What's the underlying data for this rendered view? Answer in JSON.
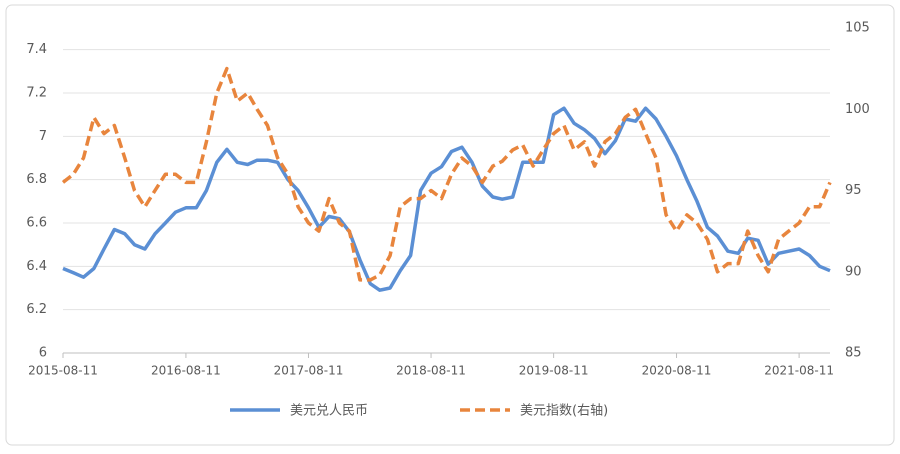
{
  "chart_data": {
    "type": "line",
    "x": [
      "2015-08-11",
      "2015-09-11",
      "2015-10-11",
      "2015-11-11",
      "2015-12-11",
      "2016-01-11",
      "2016-02-11",
      "2016-03-11",
      "2016-04-11",
      "2016-05-11",
      "2016-06-11",
      "2016-07-11",
      "2016-08-11",
      "2016-09-11",
      "2016-10-11",
      "2016-11-11",
      "2016-12-11",
      "2017-01-11",
      "2017-02-11",
      "2017-03-11",
      "2017-04-11",
      "2017-05-11",
      "2017-06-11",
      "2017-07-11",
      "2017-08-11",
      "2017-09-11",
      "2017-10-11",
      "2017-11-11",
      "2017-12-11",
      "2018-01-11",
      "2018-02-11",
      "2018-03-11",
      "2018-04-11",
      "2018-05-11",
      "2018-06-11",
      "2018-07-11",
      "2018-08-11",
      "2018-09-11",
      "2018-10-11",
      "2018-11-11",
      "2018-12-11",
      "2019-01-11",
      "2019-02-11",
      "2019-03-11",
      "2019-04-11",
      "2019-05-11",
      "2019-06-11",
      "2019-07-11",
      "2019-08-11",
      "2019-09-11",
      "2019-10-11",
      "2019-11-11",
      "2019-12-11",
      "2020-01-11",
      "2020-02-11",
      "2020-03-11",
      "2020-04-11",
      "2020-05-11",
      "2020-06-11",
      "2020-07-11",
      "2020-08-11",
      "2020-09-11",
      "2020-10-11",
      "2020-11-11",
      "2020-12-11",
      "2021-01-11",
      "2021-02-11",
      "2021-03-11",
      "2021-04-11",
      "2021-05-11",
      "2021-06-11",
      "2021-07-11",
      "2021-08-11",
      "2021-09-11",
      "2021-10-11",
      "2021-11-11"
    ],
    "series": [
      {
        "name": "美元兑人民币",
        "color": "#5b8fd4",
        "dashed": false,
        "values": [
          6.39,
          6.37,
          6.35,
          6.39,
          6.48,
          6.57,
          6.55,
          6.5,
          6.48,
          6.55,
          6.6,
          6.65,
          6.67,
          6.67,
          6.75,
          6.88,
          6.94,
          6.88,
          6.87,
          6.89,
          6.89,
          6.88,
          6.8,
          6.75,
          6.67,
          6.58,
          6.63,
          6.62,
          6.56,
          6.43,
          6.32,
          6.29,
          6.3,
          6.38,
          6.45,
          6.75,
          6.83,
          6.86,
          6.93,
          6.95,
          6.88,
          6.77,
          6.72,
          6.71,
          6.72,
          6.88,
          6.88,
          6.88,
          7.1,
          7.13,
          7.06,
          7.03,
          6.99,
          6.92,
          6.98,
          7.08,
          7.07,
          7.13,
          7.08,
          7.0,
          6.91,
          6.8,
          6.7,
          6.58,
          6.54,
          6.47,
          6.46,
          6.53,
          6.52,
          6.41,
          6.46,
          6.47,
          6.48,
          6.45,
          6.4,
          6.38
        ]
      },
      {
        "name": "美元指数(右轴)",
        "color": "#e8853d",
        "dashed": true,
        "axis": "y2",
        "values": [
          95.5,
          96,
          97,
          99.5,
          98.5,
          99,
          97,
          95,
          94,
          95,
          96,
          96,
          95.5,
          95.5,
          98,
          101,
          102.5,
          100.5,
          101,
          100,
          99,
          97,
          96,
          94,
          93,
          92.5,
          94.5,
          93,
          92.5,
          89.5,
          89.5,
          89.8,
          91,
          94,
          94.5,
          94.5,
          95,
          94.5,
          96,
          97,
          96.5,
          95.5,
          96.5,
          96.8,
          97.5,
          97.8,
          96.5,
          97.5,
          98.5,
          99,
          97.5,
          98,
          96.5,
          98,
          98.5,
          99.5,
          100,
          98.5,
          97,
          93.5,
          92.5,
          93.5,
          93,
          92,
          90,
          90.5,
          90.5,
          92.5,
          91,
          90,
          92,
          92.5,
          93,
          94,
          94,
          95.5
        ]
      }
    ],
    "xlim": [
      "2015-08-11",
      "2021-11-11"
    ],
    "xticks": [
      "2015-08-11",
      "2016-08-11",
      "2017-08-11",
      "2018-08-11",
      "2019-08-11",
      "2020-08-11",
      "2021-08-11"
    ],
    "ylim": [
      6,
      7.5
    ],
    "yticks": [
      6,
      6.2,
      6.4,
      6.6,
      6.8,
      7,
      7.2,
      7.4
    ],
    "y2lim": [
      85,
      105
    ],
    "y2ticks": [
      85,
      90,
      95,
      100,
      105
    ],
    "grid": true,
    "legend": "bottom"
  }
}
